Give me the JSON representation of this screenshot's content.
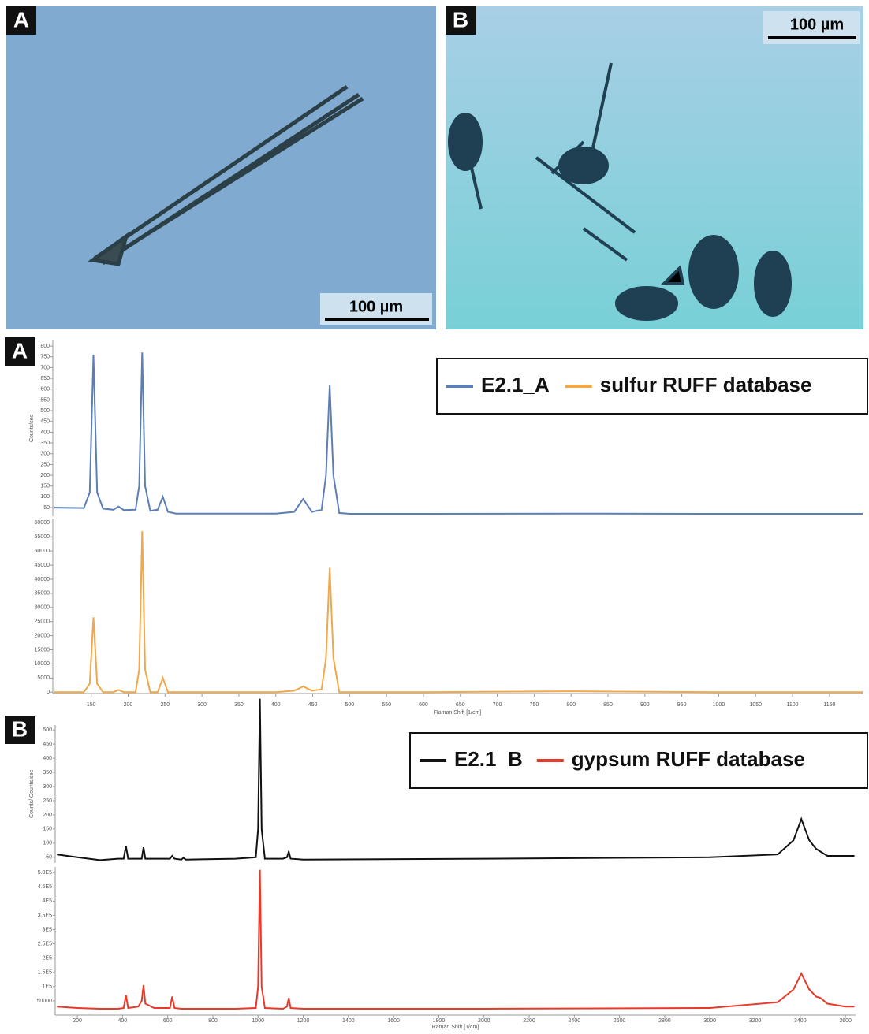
{
  "photos": [
    {
      "label": "A",
      "scale": "100 µm"
    },
    {
      "label": "B",
      "scale": "100 µm"
    }
  ],
  "chart_data": [
    {
      "type": "line",
      "panel_label": "A",
      "x_label": "Raman Shift [1/cm]",
      "y_label": "Counts/sec",
      "x": [
        100,
        140,
        148,
        153,
        158,
        166,
        180,
        187,
        194,
        210,
        215,
        219,
        223,
        230,
        240,
        247,
        254,
        265,
        300,
        400,
        425,
        437,
        449,
        462,
        468,
        473,
        478,
        486,
        500,
        600,
        800,
        1000,
        1195
      ],
      "xlim": [
        98,
        1195
      ],
      "xticks": [
        150,
        200,
        250,
        300,
        350,
        400,
        450,
        500,
        550,
        600,
        650,
        700,
        750,
        800,
        850,
        900,
        950,
        1000,
        1050,
        1100,
        1150
      ],
      "series": [
        {
          "name": "E2.1_A",
          "color": "#5b7fb5",
          "ylim": [
            10,
            826
          ],
          "yticks": [
            50,
            100,
            150,
            200,
            250,
            300,
            350,
            400,
            450,
            500,
            550,
            600,
            650,
            700,
            750,
            800
          ],
          "values": [
            50,
            48,
            120,
            760,
            120,
            45,
            40,
            55,
            38,
            40,
            150,
            770,
            150,
            35,
            40,
            100,
            30,
            22,
            22,
            22,
            30,
            90,
            30,
            40,
            200,
            620,
            200,
            25,
            21,
            21,
            22,
            21,
            21
          ]
        },
        {
          "name": "sulfur RUFF database",
          "color": "#f0a848",
          "ylim": [
            -500,
            61500
          ],
          "yticks": [
            0,
            5000,
            10000,
            15000,
            20000,
            25000,
            30000,
            35000,
            40000,
            45000,
            50000,
            55000,
            60000
          ],
          "values": [
            0,
            0,
            3000,
            26500,
            3000,
            0,
            0,
            800,
            0,
            0,
            8000,
            57000,
            8000,
            0,
            0,
            5000,
            0,
            0,
            0,
            0,
            500,
            2000,
            500,
            1000,
            12000,
            44000,
            12000,
            0,
            0,
            0,
            300,
            0,
            0
          ]
        }
      ]
    },
    {
      "type": "line",
      "panel_label": "B",
      "x_label": "Raman Shift [1/cm]",
      "y_label": "Counts/ Counts/sec",
      "x": [
        110,
        200,
        300,
        380,
        405,
        415,
        425,
        470,
        485,
        493,
        501,
        540,
        610,
        620,
        630,
        660,
        670,
        680,
        900,
        990,
        1000,
        1008,
        1016,
        1030,
        1110,
        1128,
        1136,
        1144,
        1200,
        2000,
        3000,
        3300,
        3370,
        3405,
        3440,
        3470,
        3490,
        3520,
        3600,
        3640
      ],
      "xlim": [
        102,
        3645
      ],
      "xticks": [
        200,
        400,
        600,
        800,
        1000,
        1200,
        1400,
        1600,
        1800,
        2000,
        2200,
        2400,
        2600,
        2800,
        3000,
        3200,
        3400,
        3600
      ],
      "series": [
        {
          "name": "E2.1_B",
          "color": "#111111",
          "ylim": [
            30,
            517
          ],
          "yticks": [
            50,
            100,
            150,
            200,
            250,
            300,
            350,
            400,
            450,
            500
          ],
          "values": [
            60,
            50,
            40,
            45,
            45,
            90,
            45,
            45,
            45,
            85,
            45,
            45,
            45,
            55,
            45,
            42,
            48,
            42,
            45,
            50,
            150,
            610,
            150,
            45,
            45,
            50,
            70,
            45,
            42,
            45,
            50,
            60,
            110,
            185,
            110,
            80,
            70,
            55,
            55,
            55
          ]
        },
        {
          "name": "gypsum RUFF database",
          "color": "#e83a2a",
          "ylim": [
            0,
            520000
          ],
          "yticks": [
            {
              "value": 50000,
              "label": "50000"
            },
            {
              "value": 100000,
              "label": "1E5"
            },
            {
              "value": 150000,
              "label": "1.5E5"
            },
            {
              "value": 200000,
              "label": "2E5"
            },
            {
              "value": 250000,
              "label": "2.5E5"
            },
            {
              "value": 300000,
              "label": "3E5"
            },
            {
              "value": 350000,
              "label": "3.5E5"
            },
            {
              "value": 400000,
              "label": "4E5"
            },
            {
              "value": 450000,
              "label": "4.5E5"
            },
            {
              "value": 500000,
              "label": "5.0E5"
            }
          ],
          "values": [
            30000,
            25000,
            22000,
            22000,
            25000,
            70000,
            25000,
            30000,
            50000,
            105000,
            40000,
            25000,
            25000,
            65000,
            25000,
            22000,
            22000,
            22000,
            22000,
            25000,
            100000,
            510000,
            100000,
            25000,
            22000,
            30000,
            60000,
            25000,
            22000,
            22000,
            25000,
            45000,
            90000,
            146000,
            90000,
            65000,
            60000,
            40000,
            30000,
            30000
          ]
        }
      ]
    }
  ]
}
